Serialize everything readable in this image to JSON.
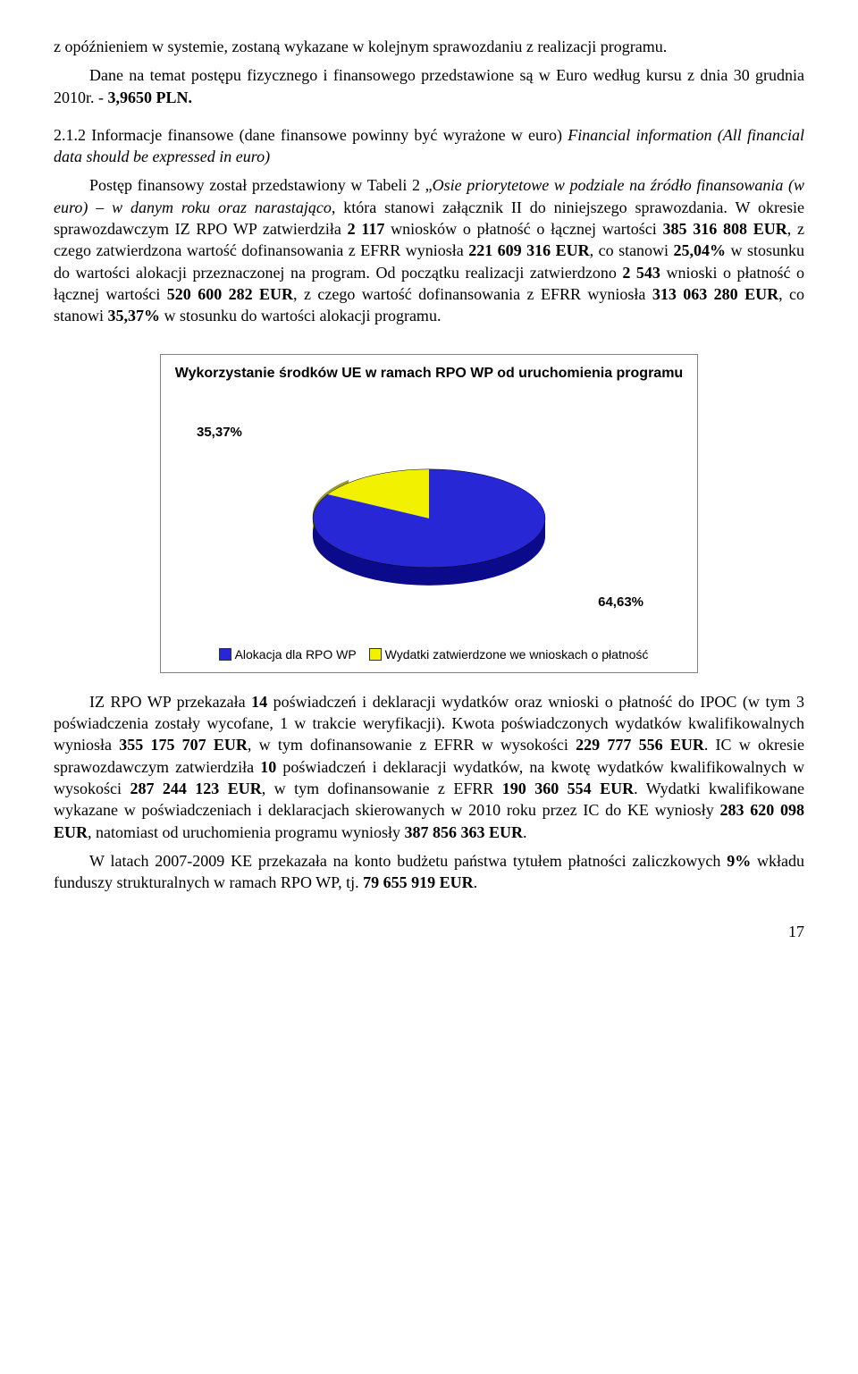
{
  "para1": "z opóźnieniem w systemie, zostaną wykazane w kolejnym sprawozdaniu z realizacji programu.",
  "para2_pre": "Dane na temat postępu fizycznego i finansowego przedstawione są w Euro według kursu z dnia 30 grudnia 2010r. - ",
  "para2_bold": "3,9650 PLN.",
  "section": {
    "num": "2.1.2",
    "title_plain": "Informacje finansowe (dane finansowe powinny być wyrażone w euro) ",
    "title_italic": "Financial information (All financial data should be expressed in euro)"
  },
  "para3_parts": [
    {
      "t": "Postęp finansowy został przedstawiony w Tabeli 2 „"
    },
    {
      "t": "Osie priorytetowe w podziale na źródło finansowania (w euro) – w danym roku oraz narastająco",
      "italic": true
    },
    {
      "t": ", która stanowi załącznik II do niniejszego sprawozdania. W okresie sprawozdawczym IZ RPO WP zatwierdziła "
    },
    {
      "t": "2 117",
      "bold": true
    },
    {
      "t": " wniosków o płatność o łącznej wartości "
    },
    {
      "t": "385 316 808 EUR",
      "bold": true
    },
    {
      "t": ", z czego zatwierdzona wartość dofinansowania z EFRR wyniosła "
    },
    {
      "t": "221 609 316 EUR",
      "bold": true
    },
    {
      "t": ", co stanowi "
    },
    {
      "t": "25,04%",
      "bold": true
    },
    {
      "t": " w stosunku do wartości alokacji przeznaczonej na program. Od początku realizacji zatwierdzono "
    },
    {
      "t": "2 543",
      "bold": true
    },
    {
      "t": " wnioski o płatność o łącznej wartości "
    },
    {
      "t": "520 600 282 EUR",
      "bold": true
    },
    {
      "t": ", z czego wartość dofinansowania z EFRR wyniosła "
    },
    {
      "t": "313 063 280 EUR",
      "bold": true
    },
    {
      "t": ", co stanowi "
    },
    {
      "t": "35,37%",
      "bold": true
    },
    {
      "t": " w stosunku do wartości alokacji programu."
    }
  ],
  "chart": {
    "type": "pie-3d",
    "title": "Wykorzystanie środków UE w ramach RPO WP od uruchomienia programu",
    "slices": [
      {
        "label": "Alokacja dla RPO WP",
        "pct": 64.63,
        "pct_label": "64,63%",
        "color_top": "#2727d6",
        "color_side": "#0a0a8a"
      },
      {
        "label": "Wydatki zatwierdzone we wnioskach o płatność",
        "pct": 35.37,
        "pct_label": "35,37%",
        "color_top": "#f2f200",
        "color_side": "#9a9a20"
      }
    ],
    "legend_marker_colors": [
      "#2727d6",
      "#f2f200"
    ],
    "background": "#ffffff",
    "border_color": "#808080",
    "label_font": "Arial",
    "label_fontsize": 15,
    "title_fontsize": 16
  },
  "para4_parts": [
    {
      "t": "IZ RPO WP przekazała "
    },
    {
      "t": "14",
      "bold": true
    },
    {
      "t": " poświadczeń i deklaracji wydatków oraz wnioski o płatność do IPOC (w tym 3 poświadczenia zostały wycofane, 1 w trakcie weryfikacji). Kwota poświadczonych wydatków kwalifikowalnych wyniosła "
    },
    {
      "t": "355 175 707 EUR",
      "bold": true
    },
    {
      "t": ", w tym dofinansowanie z EFRR w wysokości "
    },
    {
      "t": "229 777 556 EUR",
      "bold": true
    },
    {
      "t": ". IC w okresie sprawozdawczym zatwierdziła "
    },
    {
      "t": "10",
      "bold": true
    },
    {
      "t": " poświadczeń i deklaracji wydatków, na kwotę wydatków kwalifikowalnych w wysokości "
    },
    {
      "t": "287 244 123 EUR",
      "bold": true
    },
    {
      "t": ", w tym dofinansowanie z EFRR "
    },
    {
      "t": "190 360 554 EUR",
      "bold": true
    },
    {
      "t": ". Wydatki kwalifikowane wykazane w poświadczeniach i deklaracjach skierowanych w 2010 roku przez IC do KE wyniosły "
    },
    {
      "t": "283 620 098 EUR",
      "bold": true
    },
    {
      "t": ", natomiast od uruchomienia programu wyniosły "
    },
    {
      "t": "387 856 363 EUR",
      "bold": true
    },
    {
      "t": "."
    }
  ],
  "para5_parts": [
    {
      "t": "W latach 2007-2009 KE przekazała na konto budżetu państwa tytułem płatności zaliczkowych "
    },
    {
      "t": "9%",
      "bold": true
    },
    {
      "t": " wkładu funduszy strukturalnych w ramach RPO WP, tj. "
    },
    {
      "t": "79 655 919 EUR",
      "bold": true
    },
    {
      "t": "."
    }
  ],
  "page_number": "17"
}
